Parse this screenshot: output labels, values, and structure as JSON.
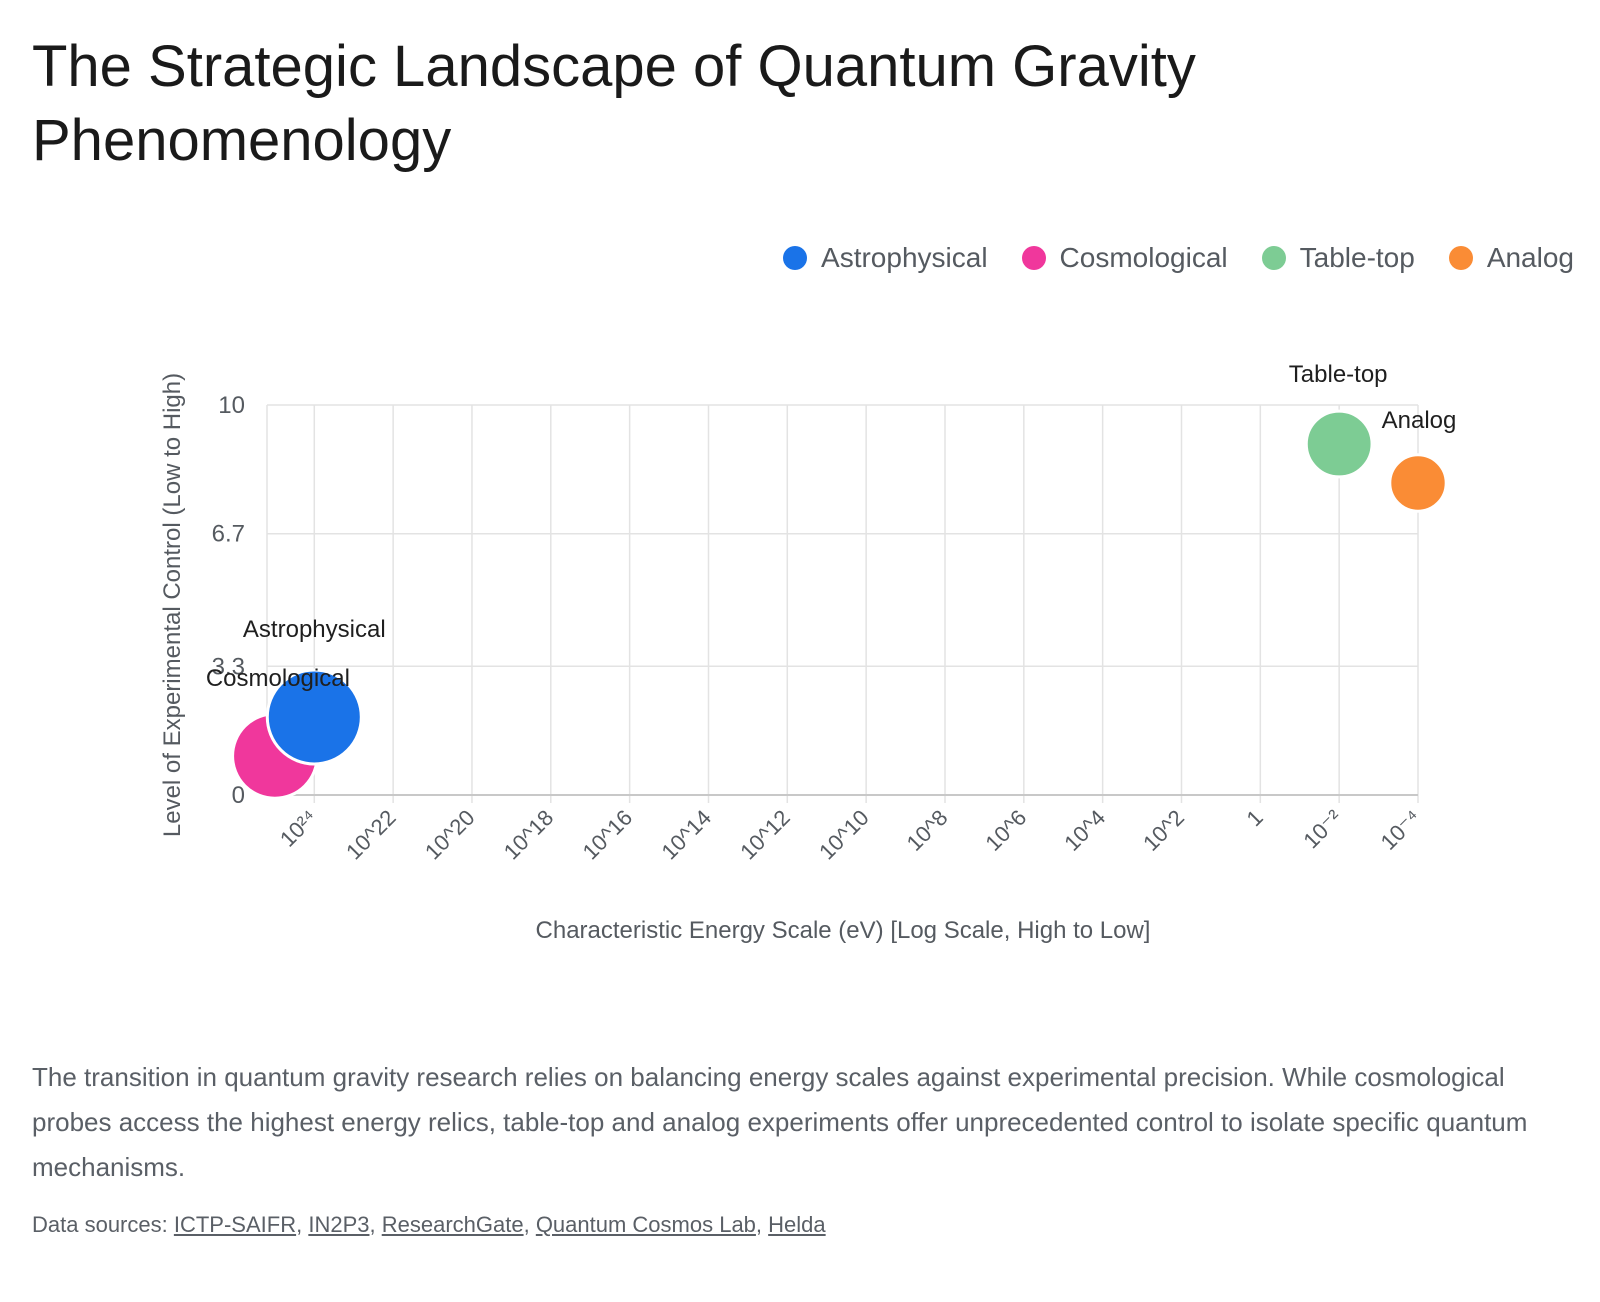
{
  "title": "The Strategic Landscape of Quantum Gravity Phenomenology",
  "legend": [
    {
      "label": "Astrophysical",
      "color": "#1a73e8"
    },
    {
      "label": "Cosmological",
      "color": "#f0379c"
    },
    {
      "label": "Table-top",
      "color": "#7dcc94"
    },
    {
      "label": "Analog",
      "color": "#fa8c35"
    }
  ],
  "chart_data": {
    "type": "bubble",
    "xlabel": "Characteristic Energy Scale (eV) [Log Scale, High to Low]",
    "ylabel": "Level of Experimental Control (Low to High)",
    "x_scale": "log10, reversed (high to low)",
    "xlim_exponent": [
      25.2,
      -4
    ],
    "ylim": [
      0,
      10
    ],
    "y_ticks": [
      "0",
      "3.3",
      "6.7",
      "10"
    ],
    "x_ticks": [
      "10²⁴",
      "10^22",
      "10^20",
      "10^18",
      "10^16",
      "10^14",
      "10^12",
      "10^10",
      "10^8",
      "10^6",
      "10^4",
      "10^2",
      "1",
      "10⁻²",
      "10⁻⁴"
    ],
    "grid": true,
    "legend_position": "top-right",
    "series": [
      {
        "name": "Astrophysical",
        "color": "#1a73e8",
        "x": "10^24",
        "y": 2.0,
        "size": 1.0,
        "label": "Astrophysical"
      },
      {
        "name": "Cosmological",
        "color": "#f0379c",
        "x": "10^25",
        "y": 1.0,
        "size": 0.9,
        "label": "Cosmological"
      },
      {
        "name": "Table-top",
        "color": "#7dcc94",
        "x": "10^-2",
        "y": 9.0,
        "size": 0.7,
        "label": "Table-top"
      },
      {
        "name": "Analog",
        "color": "#fa8c35",
        "x": "10^-4",
        "y": 8.0,
        "size": 0.6,
        "label": "Analog"
      }
    ]
  },
  "description": "The transition in quantum gravity research relies on balancing energy scales against experimental precision. While cosmological probes access the highest energy relics, table-top and analog experiments offer unprecedented control to isolate specific quantum mechanisms.",
  "sources": {
    "prefix": "Data sources:",
    "links": [
      "ICTP-SAIFR",
      "IN2P3",
      "ResearchGate",
      "Quantum Cosmos Lab",
      "Helda"
    ]
  }
}
